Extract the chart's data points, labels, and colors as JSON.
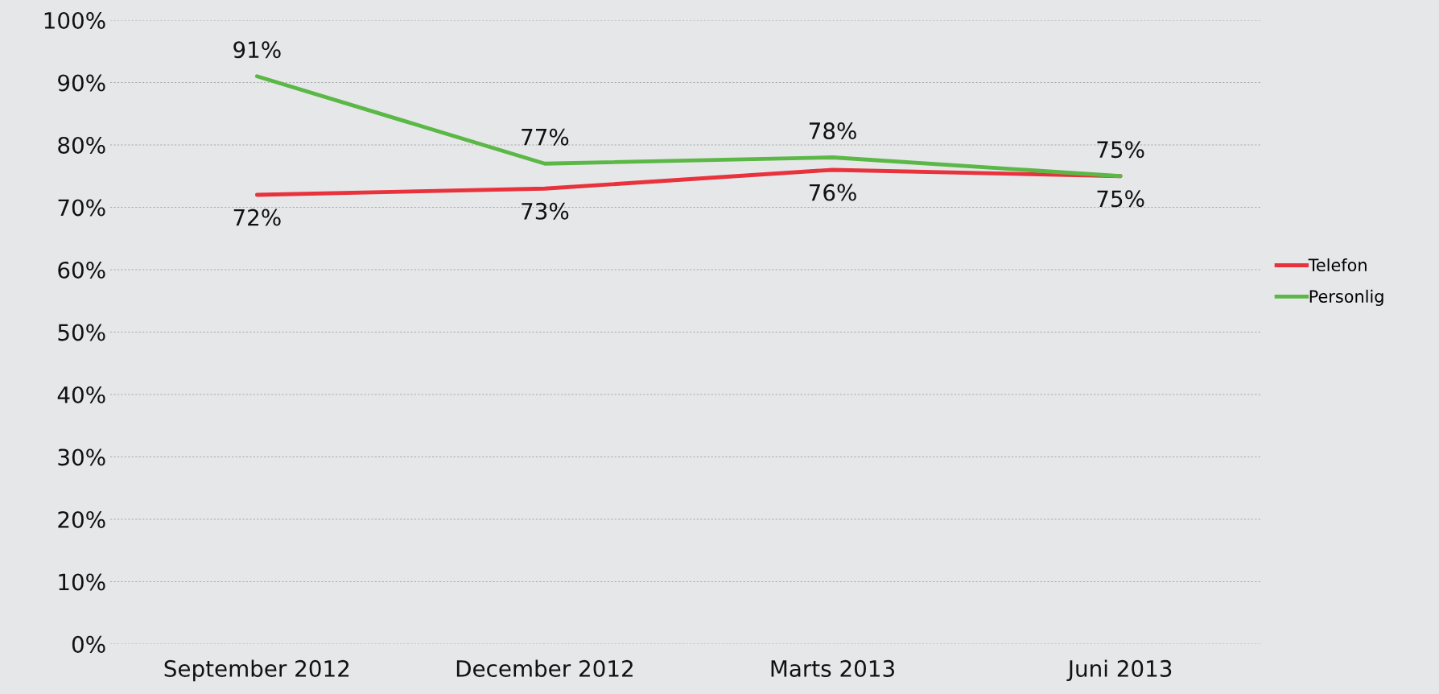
{
  "chart_data": {
    "type": "line",
    "categories": [
      "September 2012",
      "December 2012",
      "Marts 2013",
      "Juni 2013"
    ],
    "series": [
      {
        "name": "Telefon",
        "color": "#e8323c",
        "values": [
          72,
          73,
          76,
          75
        ],
        "value_labels": [
          "72%",
          "73%",
          "76%",
          "75%"
        ]
      },
      {
        "name": "Personlig",
        "color": "#5bb846",
        "values": [
          91,
          77,
          78,
          75
        ],
        "value_labels": [
          "91%",
          "77%",
          "78%",
          "75%"
        ]
      }
    ],
    "ylim": [
      0,
      100
    ],
    "yticks": [
      {
        "value": 0,
        "label": "0%"
      },
      {
        "value": 10,
        "label": "10%"
      },
      {
        "value": 20,
        "label": "20%"
      },
      {
        "value": 30,
        "label": "30%"
      },
      {
        "value": 40,
        "label": "40%"
      },
      {
        "value": 50,
        "label": "50%"
      },
      {
        "value": 60,
        "label": "60%"
      },
      {
        "value": 70,
        "label": "70%"
      },
      {
        "value": 80,
        "label": "80%"
      },
      {
        "value": 90,
        "label": "90%"
      },
      {
        "value": 100,
        "label": "100%"
      }
    ],
    "grid": "y",
    "legend": "right",
    "marker": "none",
    "line_style": "solid"
  }
}
